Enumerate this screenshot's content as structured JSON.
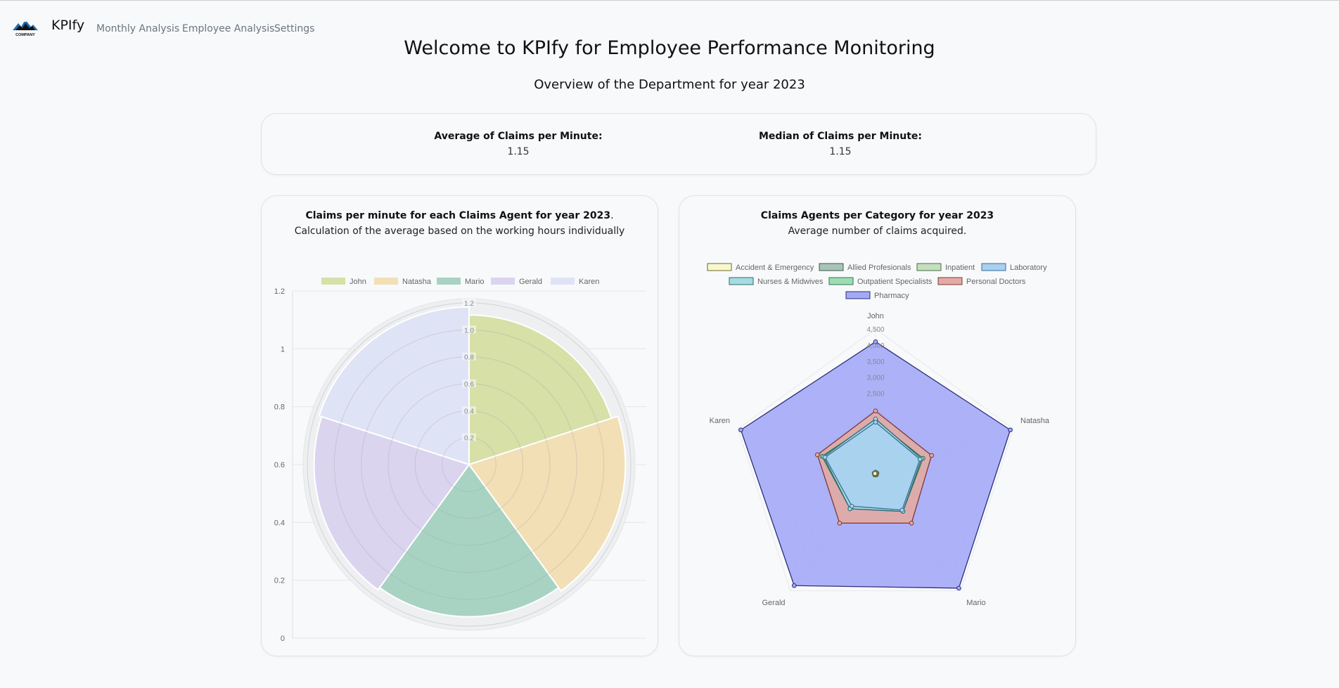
{
  "nav": {
    "logo_text": "COMPANY",
    "brand": "KPIfy",
    "links": [
      "Monthly Analysis",
      "Employee Analysis",
      "Settings"
    ]
  },
  "header": {
    "title": "Welcome to KPIfy for Employee Performance Monitoring",
    "subtitle": "Overview of the Department for year 2023"
  },
  "stats": {
    "average_label": "Average of Claims per Minute:",
    "average_value": "1.15",
    "median_label": "Median of Claims per Minute:",
    "median_value": "1.15"
  },
  "polar_card": {
    "title": "Claims per minute for each Claims Agent for year 2023",
    "title_suffix": ".",
    "subtitle": "Calculation of the average based on the working hours individually"
  },
  "radar_card": {
    "title": "Claims Agents per Category for year 2023",
    "subtitle": "Average number of claims acquired."
  },
  "colors": {
    "polar": [
      "#d6e0a7",
      "#f2dfb6",
      "#a8d3c2",
      "#dbd4ef",
      "#dfe3f6"
    ],
    "radar_fill": {
      "Pharmacy": "#a4a9f6",
      "Personal Doctors": "#e3aba4",
      "Laboratory": "#a8d0ef",
      "Inpatient": "#c4dfbe",
      "Outpatient Specialists": "#9fdcb3",
      "Nurses & Midwives": "#a6dbe2",
      "Allied Profesionals": "#a7c4b6",
      "Accident & Emergency": "#f9f8cd"
    }
  },
  "chart_data": [
    {
      "type": "polarArea",
      "categories": [
        "John",
        "Natasha",
        "Mario",
        "Gerald",
        "Karen"
      ],
      "values": [
        1.11,
        1.16,
        1.13,
        1.15,
        1.17
      ],
      "rlim": [
        0,
        1.2
      ],
      "radial_ticks": [
        "0.2",
        "0.4",
        "0.6",
        "0.8",
        "1.0",
        "1.2"
      ],
      "y_ticks": [
        "0",
        "0.2",
        "0.4",
        "0.6",
        "0.8",
        "1",
        "1.2"
      ],
      "legend": "top",
      "grid": true
    },
    {
      "type": "radar",
      "axes": [
        "John",
        "Natasha",
        "Mario",
        "Gerald",
        "Karen"
      ],
      "rlim": [
        0,
        4500
      ],
      "radial_ticks": [
        "2,500",
        "3,000",
        "3,500",
        "4,000",
        "4,500"
      ],
      "legend": "top",
      "series": [
        {
          "name": "Accident & Emergency",
          "values": [
            20,
            20,
            20,
            20,
            20
          ]
        },
        {
          "name": "Allied Profesionals",
          "values": [
            45,
            45,
            45,
            45,
            45
          ]
        },
        {
          "name": "Inpatient",
          "values": [
            40,
            40,
            40,
            40,
            40
          ]
        },
        {
          "name": "Laboratory",
          "values": [
            1600,
            1450,
            1400,
            1250,
            1650
          ]
        },
        {
          "name": "Nurses & Midwives",
          "values": [
            1700,
            1500,
            1450,
            1350,
            1700
          ]
        },
        {
          "name": "Outpatient Specialists",
          "values": [
            1650,
            1550,
            1450,
            1350,
            1750
          ]
        },
        {
          "name": "Personal Doctors",
          "values": [
            1950,
            1830,
            1900,
            1900,
            1900
          ]
        },
        {
          "name": "Pharmacy",
          "values": [
            4100,
            4400,
            4400,
            4300,
            4400
          ]
        }
      ]
    }
  ]
}
